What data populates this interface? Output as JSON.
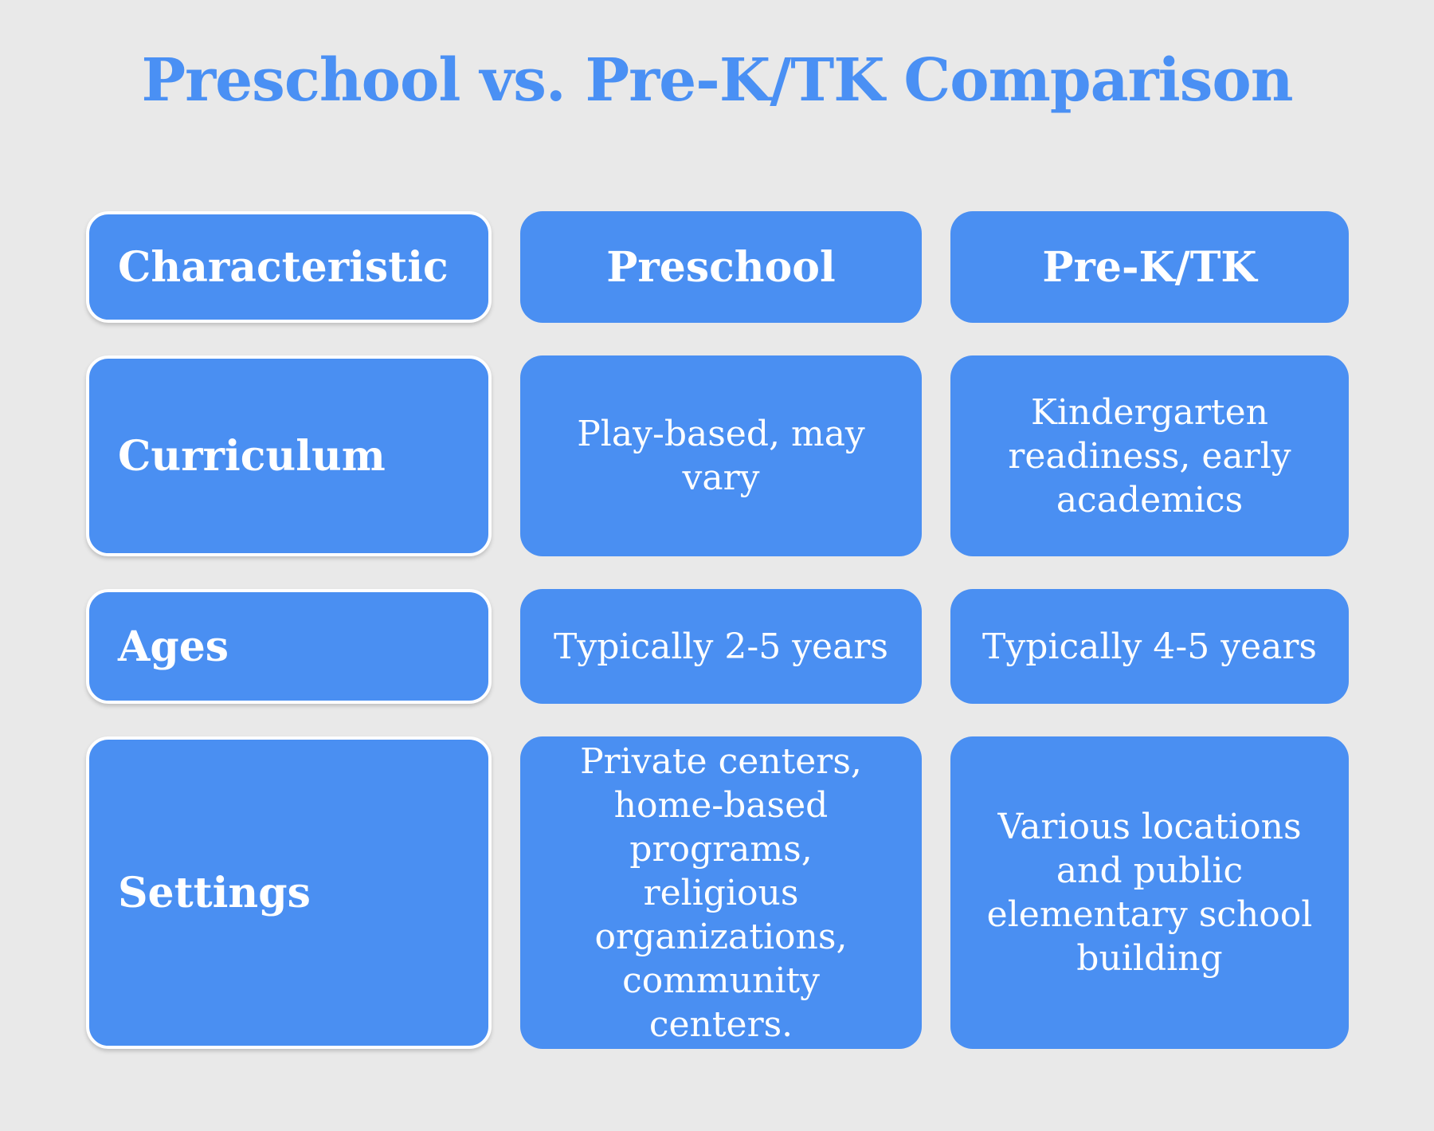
{
  "title": "Preschool vs. Pre-K/TK Comparison",
  "colors": {
    "accent": "#4A8FF2",
    "title_text": "#4A90F4",
    "background": "#E9E9E9",
    "cell_text": "#FFFFFF"
  },
  "chart_data": {
    "type": "table",
    "title": "Preschool vs. Pre-K/TK Comparison",
    "columns": [
      "Characteristic",
      "Preschool",
      "Pre-K/TK"
    ],
    "rows": [
      [
        "Curriculum",
        "Play-based, may vary",
        "Kindergarten readiness, early academics"
      ],
      [
        "Ages",
        "Typically 2-5 years",
        "Typically 4-5 years"
      ],
      [
        "Settings",
        "Private centers, home-based programs, religious organizations, community centers.",
        "Various locations and public elementary school building"
      ]
    ],
    "layout": {
      "header_position": "top-row",
      "label_column": "left",
      "grid": "rounded-cards-on-gray-background"
    }
  }
}
